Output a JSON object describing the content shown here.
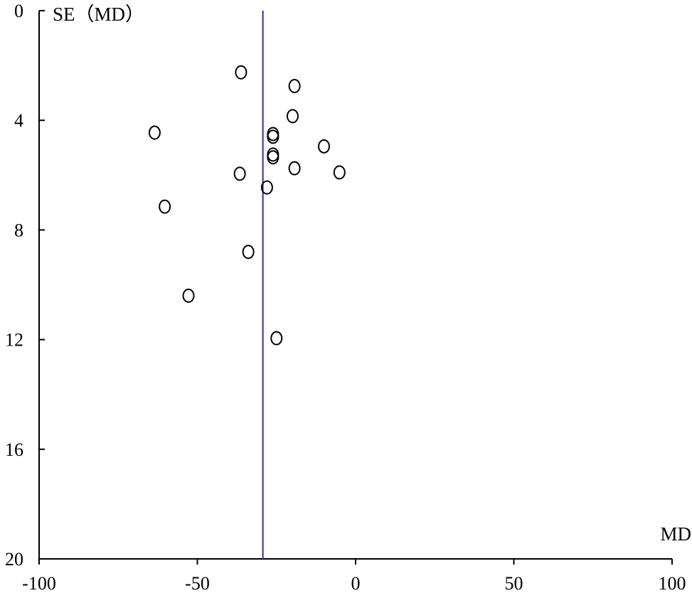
{
  "chart_data": {
    "type": "scatter",
    "title": "",
    "xlabel": "MD",
    "ylabel": "SE（MD）",
    "xlim": [
      -100,
      100
    ],
    "ylim": [
      0,
      20
    ],
    "y_inverted": true,
    "grid": false,
    "x_ticks": [
      -100,
      -50,
      0,
      50,
      100
    ],
    "y_ticks": [
      0,
      4,
      8,
      12,
      16,
      20
    ],
    "x_tick_labels": [
      "-100",
      "-50",
      "0",
      "50",
      "100"
    ],
    "y_tick_labels": [
      "0",
      "4",
      "8",
      "12",
      "16",
      "20"
    ],
    "reference_line": {
      "x": -29.3,
      "color": "#2e3192"
    },
    "marker": "open-circle",
    "points": [
      {
        "x": -36.2,
        "y": 2.25
      },
      {
        "x": -19.3,
        "y": 2.75
      },
      {
        "x": -19.9,
        "y": 3.85
      },
      {
        "x": -63.5,
        "y": 4.45
      },
      {
        "x": -26.1,
        "y": 4.5
      },
      {
        "x": -26.1,
        "y": 4.6
      },
      {
        "x": -10.0,
        "y": 4.95
      },
      {
        "x": -26.1,
        "y": 5.25
      },
      {
        "x": -26.1,
        "y": 5.35
      },
      {
        "x": -19.3,
        "y": 5.75
      },
      {
        "x": -36.6,
        "y": 5.95
      },
      {
        "x": -5.1,
        "y": 5.9
      },
      {
        "x": -28.0,
        "y": 6.45
      },
      {
        "x": -60.3,
        "y": 7.15
      },
      {
        "x": -33.9,
        "y": 8.8
      },
      {
        "x": -52.8,
        "y": 10.4
      },
      {
        "x": -25.0,
        "y": 11.95
      }
    ]
  }
}
